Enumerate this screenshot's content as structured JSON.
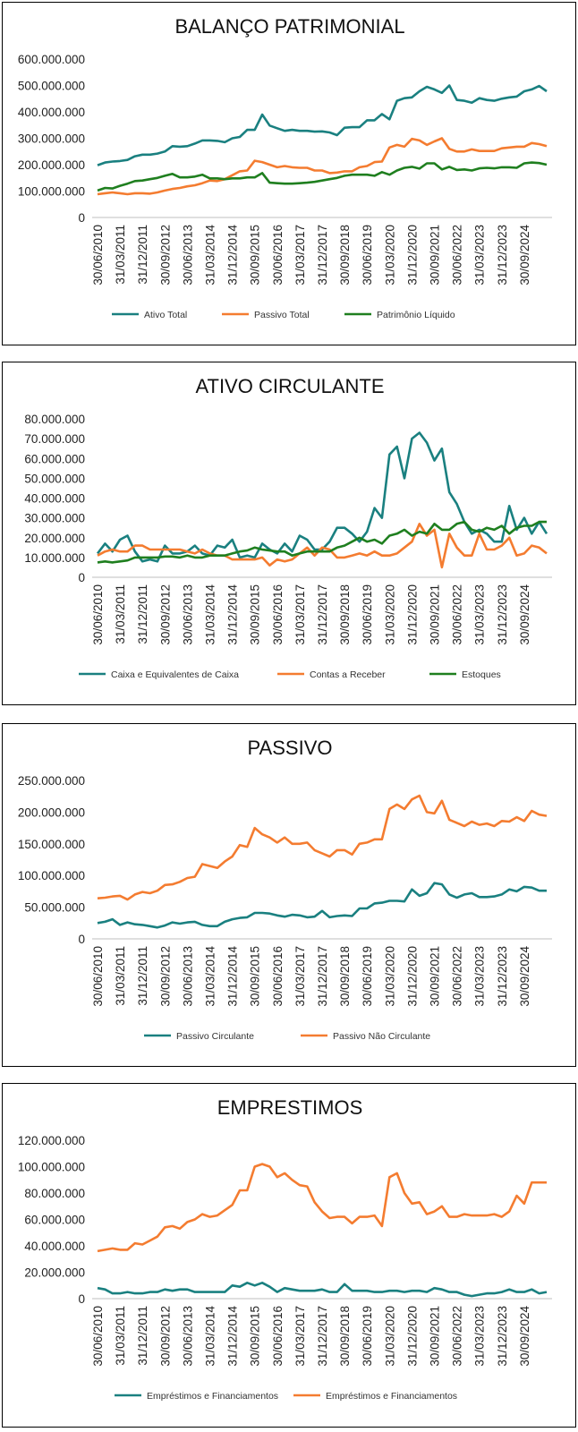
{
  "colors": {
    "teal": "#1a8080",
    "orange": "#f47c30",
    "green": "#1f7f1f",
    "axis": "#bfbfbf"
  },
  "chart_data": [
    {
      "type": "line",
      "title": "BALANÇO PATRIMONIAL",
      "ylim": [
        0,
        600000000
      ],
      "yticks": [
        "0",
        "100.000.000",
        "200.000.000",
        "300.000.000",
        "400.000.000",
        "500.000.000",
        "600.000.000"
      ],
      "ytick_values": [
        0,
        100000000,
        200000000,
        300000000,
        400000000,
        500000000,
        600000000
      ],
      "x_tick_labels": [
        "30/06/2010",
        "31/03/2011",
        "31/12/2011",
        "30/09/2012",
        "30/06/2013",
        "31/03/2014",
        "31/12/2014",
        "30/09/2015",
        "30/06/2016",
        "31/03/2017",
        "31/12/2017",
        "30/09/2018",
        "30/06/2019",
        "31/03/2020",
        "31/12/2020",
        "30/09/2021",
        "30/06/2022",
        "31/03/2023",
        "31/12/2023",
        "30/09/2024"
      ],
      "legend_position": "bottom",
      "series": [
        {
          "name": "Ativo Total",
          "color": "#1a8080",
          "values": [
            198,
            208,
            212,
            214,
            218,
            232,
            238,
            238,
            242,
            250,
            270,
            268,
            270,
            280,
            292,
            292,
            290,
            285,
            300,
            305,
            332,
            332,
            390,
            348,
            338,
            328,
            332,
            328,
            328,
            325,
            326,
            322,
            312,
            340,
            342,
            342,
            368,
            368,
            392,
            372,
            442,
            452,
            455,
            478,
            495,
            485,
            472,
            500,
            445,
            442,
            435,
            452,
            445,
            442,
            450,
            455,
            458,
            478,
            485,
            498,
            478
          ]
        },
        {
          "name": "Passivo Total",
          "color": "#f47c30",
          "values": [
            88,
            92,
            95,
            92,
            88,
            92,
            92,
            90,
            95,
            102,
            108,
            112,
            118,
            122,
            130,
            140,
            138,
            145,
            160,
            175,
            178,
            215,
            210,
            200,
            190,
            195,
            190,
            188,
            188,
            178,
            178,
            168,
            170,
            175,
            175,
            190,
            195,
            210,
            212,
            265,
            275,
            268,
            298,
            292,
            275,
            288,
            300,
            260,
            250,
            250,
            258,
            252,
            252,
            252,
            262,
            265,
            268,
            268,
            282,
            278,
            270
          ]
        },
        {
          "name": "Patrimônio Líquido",
          "color": "#1f7f1f",
          "values": [
            102,
            112,
            110,
            120,
            128,
            138,
            140,
            145,
            150,
            158,
            165,
            152,
            152,
            155,
            162,
            148,
            148,
            145,
            148,
            148,
            152,
            152,
            168,
            132,
            130,
            128,
            128,
            130,
            132,
            135,
            140,
            145,
            150,
            158,
            162,
            162,
            162,
            158,
            172,
            162,
            178,
            188,
            192,
            185,
            205,
            205,
            182,
            192,
            180,
            182,
            178,
            186,
            188,
            186,
            190,
            190,
            188,
            205,
            208,
            206,
            200
          ]
        }
      ],
      "unit_scale": 1000000
    },
    {
      "type": "line",
      "title": "ATIVO CIRCULANTE",
      "ylim": [
        0,
        80000000
      ],
      "yticks": [
        "0",
        "10.000.000",
        "20.000.000",
        "30.000.000",
        "40.000.000",
        "50.000.000",
        "60.000.000",
        "70.000.000",
        "80.000.000"
      ],
      "ytick_values": [
        0,
        10000000,
        20000000,
        30000000,
        40000000,
        50000000,
        60000000,
        70000000,
        80000000
      ],
      "x_tick_labels": [
        "30/06/2010",
        "31/03/2011",
        "31/12/2011",
        "30/09/2012",
        "30/06/2013",
        "31/03/2014",
        "31/12/2014",
        "30/09/2015",
        "30/06/2016",
        "31/03/2017",
        "31/12/2017",
        "30/09/2018",
        "30/06/2019",
        "31/03/2020",
        "31/12/2020",
        "30/09/2021",
        "30/06/2022",
        "31/03/2023",
        "31/12/2023",
        "30/09/2024"
      ],
      "legend_position": "bottom",
      "series": [
        {
          "name": "Caixa e Equivalentes de Caixa",
          "color": "#1a8080",
          "values": [
            12,
            17,
            13,
            19,
            21,
            13,
            8,
            9,
            8,
            16,
            12,
            12,
            13,
            16,
            12,
            11,
            16,
            15,
            19,
            10,
            11,
            10,
            17,
            14,
            12,
            17,
            13,
            21,
            19,
            14,
            14,
            18,
            25,
            25,
            22,
            18,
            23,
            35,
            30,
            62,
            66,
            50,
            70,
            73,
            68,
            59,
            65,
            43,
            37,
            28,
            22,
            24,
            22,
            18,
            18,
            36,
            24,
            30,
            22,
            28,
            22
          ]
        },
        {
          "name": "Contas a Receber",
          "color": "#f47c30",
          "values": [
            11,
            13,
            14,
            13,
            13,
            16,
            16,
            14,
            14,
            14,
            14,
            14,
            13,
            12,
            14,
            12,
            11,
            11,
            9,
            9,
            9,
            9,
            10,
            6,
            9,
            8,
            9,
            12,
            15,
            11,
            15,
            14,
            10,
            10,
            11,
            12,
            11,
            13,
            11,
            11,
            12,
            15,
            18,
            27,
            21,
            24,
            5,
            22,
            15,
            11,
            11,
            22,
            14,
            14,
            16,
            20,
            11,
            12,
            16,
            15,
            12
          ]
        },
        {
          "name": "Estoques",
          "color": "#1f7f1f",
          "values": [
            7.5,
            8,
            7.5,
            8,
            8.5,
            10,
            10,
            10,
            10,
            10.5,
            10.5,
            10,
            11,
            10,
            10,
            11,
            11,
            11,
            12,
            13,
            13.5,
            15,
            14,
            13.5,
            13,
            13,
            11,
            12,
            13,
            13,
            13,
            13,
            15,
            16,
            18,
            20,
            18,
            19,
            17,
            21,
            22,
            24,
            21,
            23,
            22,
            27,
            24,
            24,
            27,
            28,
            24,
            23,
            25,
            24,
            26,
            22,
            25,
            26,
            26,
            28,
            28
          ]
        }
      ],
      "unit_scale": 1000000
    },
    {
      "type": "line",
      "title": "PASSIVO",
      "ylim": [
        0,
        250000000
      ],
      "yticks": [
        "0",
        "50.000.000",
        "100.000.000",
        "150.000.000",
        "200.000.000",
        "250.000.000"
      ],
      "ytick_values": [
        0,
        50000000,
        100000000,
        150000000,
        200000000,
        250000000
      ],
      "x_tick_labels": [
        "30/06/2010",
        "31/03/2011",
        "31/12/2011",
        "30/09/2012",
        "30/06/2013",
        "31/03/2014",
        "31/12/2014",
        "30/09/2015",
        "30/06/2016",
        "31/03/2017",
        "31/12/2017",
        "30/09/2018",
        "30/06/2019",
        "31/03/2020",
        "31/12/2020",
        "30/09/2021",
        "30/06/2022",
        "31/03/2023",
        "31/12/2023",
        "30/09/2024"
      ],
      "legend_position": "bottom",
      "series": [
        {
          "name": "Passivo Circulante",
          "color": "#1a8080",
          "values": [
            25,
            27,
            31,
            22,
            26,
            23,
            22,
            20,
            18,
            21,
            26,
            24,
            26,
            27,
            22,
            20,
            20,
            27,
            31,
            33,
            34,
            41,
            41,
            40,
            37,
            35,
            38,
            37,
            34,
            35,
            44,
            34,
            36,
            37,
            36,
            48,
            48,
            56,
            57,
            60,
            60,
            59,
            78,
            68,
            72,
            88,
            86,
            70,
            65,
            70,
            72,
            66,
            66,
            67,
            70,
            78,
            75,
            82,
            81,
            76,
            76
          ]
        },
        {
          "name": "Passivo Não Circulante",
          "color": "#f47c30",
          "values": [
            64,
            65,
            67,
            68,
            62,
            70,
            74,
            72,
            76,
            85,
            86,
            90,
            96,
            98,
            118,
            115,
            112,
            122,
            130,
            148,
            145,
            175,
            165,
            160,
            152,
            160,
            150,
            150,
            152,
            140,
            135,
            130,
            140,
            140,
            133,
            150,
            152,
            157,
            157,
            205,
            212,
            205,
            220,
            226,
            200,
            198,
            218,
            188,
            183,
            178,
            185,
            180,
            182,
            178,
            186,
            185,
            192,
            186,
            202,
            196,
            194
          ]
        }
      ],
      "unit_scale": 1000000
    },
    {
      "type": "line",
      "title": "EMPRESTIMOS",
      "ylim": [
        0,
        120000000
      ],
      "yticks": [
        "0",
        "20.000.000",
        "40.000.000",
        "60.000.000",
        "80.000.000",
        "100.000.000",
        "120.000.000"
      ],
      "ytick_values": [
        0,
        20000000,
        40000000,
        60000000,
        80000000,
        100000000,
        120000000
      ],
      "x_tick_labels": [
        "30/06/2010",
        "31/03/2011",
        "31/12/2011",
        "30/09/2012",
        "30/06/2013",
        "31/03/2014",
        "31/12/2014",
        "30/09/2015",
        "30/06/2016",
        "31/03/2017",
        "31/12/2017",
        "30/09/2018",
        "30/06/2019",
        "31/03/2020",
        "31/12/2020",
        "30/09/2021",
        "30/06/2022",
        "31/03/2023",
        "31/12/2023",
        "30/09/2024"
      ],
      "legend_position": "bottom",
      "series": [
        {
          "name": "Empréstimos e Financiamentos",
          "color": "#1a8080",
          "values": [
            8,
            7,
            4,
            4,
            5,
            4,
            4,
            5,
            5,
            7,
            6,
            7,
            7,
            5,
            5,
            5,
            5,
            5,
            10,
            9,
            12,
            10,
            12,
            9,
            5,
            8,
            7,
            6,
            6,
            6,
            7,
            5,
            5,
            11,
            6,
            6,
            6,
            5,
            5,
            6,
            6,
            5,
            6,
            6,
            5,
            8,
            7,
            5,
            5,
            3,
            2,
            3,
            4,
            4,
            5,
            7,
            5,
            5,
            7,
            4,
            5
          ]
        },
        {
          "name": "Empréstimos e Financiamentos",
          "color": "#f47c30",
          "values": [
            36,
            37,
            38,
            37,
            37,
            42,
            41,
            44,
            47,
            54,
            55,
            53,
            58,
            60,
            64,
            62,
            63,
            67,
            71,
            82,
            82,
            100,
            102,
            100,
            92,
            95,
            90,
            86,
            85,
            73,
            66,
            61,
            62,
            62,
            57,
            62,
            62,
            63,
            55,
            92,
            95,
            80,
            72,
            73,
            64,
            66,
            70,
            62,
            62,
            64,
            63,
            63,
            63,
            64,
            62,
            66,
            78,
            72,
            88,
            88,
            88
          ]
        }
      ],
      "unit_scale": 1000000
    }
  ]
}
